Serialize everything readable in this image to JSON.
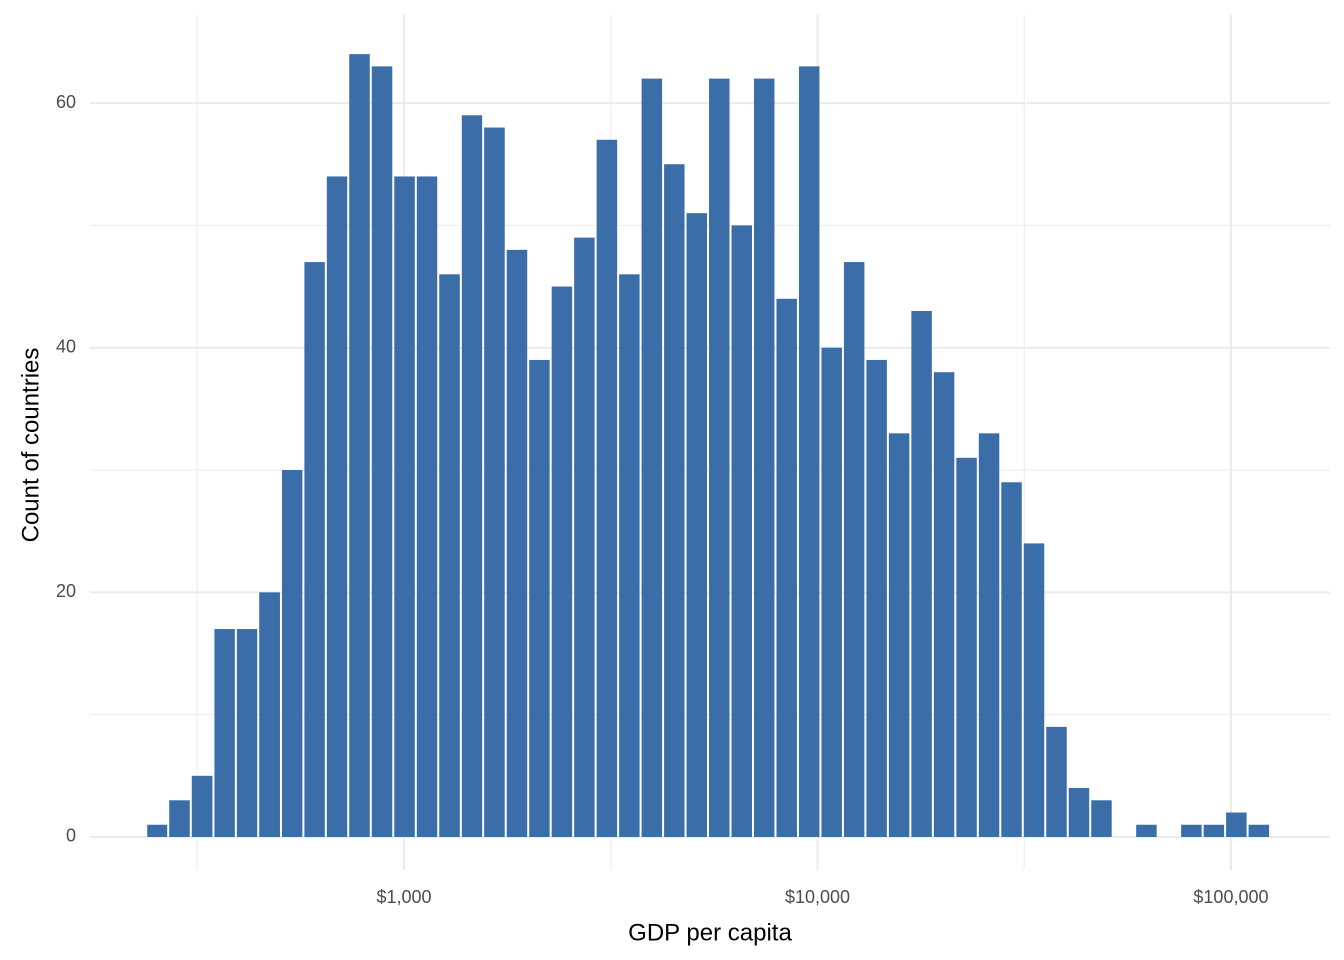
{
  "chart_data": {
    "type": "histogram",
    "x_label": "GDP per capita",
    "y_label": "Count of countries",
    "bins": [
      238,
      269,
      305,
      346,
      392,
      444,
      504,
      571,
      647,
      733,
      831,
      942,
      1068,
      1210,
      1372,
      1554,
      1762,
      1997,
      2263,
      2565,
      2907,
      3295,
      3734,
      4232,
      4796,
      5436,
      6161,
      6983,
      7914,
      8970,
      10166,
      11522,
      13058,
      14800,
      16774,
      19011,
      21547,
      24421,
      27678,
      31369,
      35553,
      40295,
      45669,
      51760,
      58663,
      66488,
      75355,
      85406,
      96797,
      109707,
      124339
    ],
    "values": [
      1,
      3,
      5,
      17,
      17,
      20,
      30,
      47,
      54,
      64,
      63,
      54,
      54,
      46,
      59,
      58,
      48,
      39,
      45,
      49,
      57,
      46,
      62,
      55,
      51,
      62,
      50,
      62,
      44,
      63,
      40,
      47,
      39,
      33,
      43,
      38,
      31,
      33,
      29,
      24,
      9,
      4,
      3,
      0,
      1,
      0,
      1,
      1,
      2,
      1
    ],
    "color": "#3b6ea8",
    "x_scale": "log",
    "xlim": [
      174,
      173600
    ],
    "xticks": [
      {
        "value": 1000,
        "label": "$1,000"
      },
      {
        "value": 10000,
        "label": "$10,000"
      },
      {
        "value": 100000,
        "label": "$100,000"
      }
    ],
    "x_minor_ticks": [
      316.23,
      3162.3,
      31623
    ],
    "ylim": [
      -2.7,
      67.2
    ],
    "yticks": [
      0,
      20,
      40,
      60
    ],
    "y_minor_ticks": [
      10,
      30,
      50
    ],
    "grid": true
  }
}
